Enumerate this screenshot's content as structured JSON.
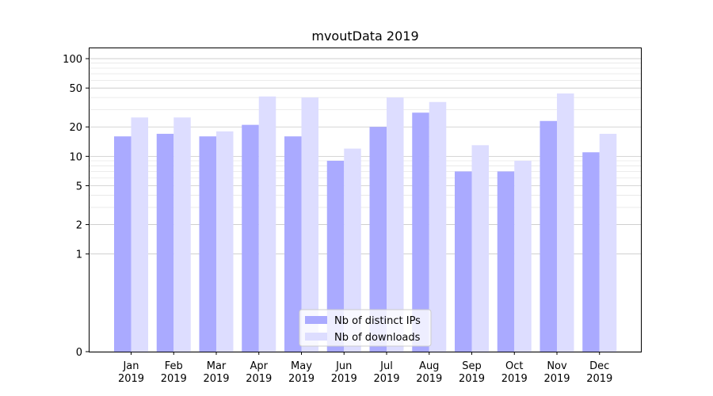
{
  "chart_data": {
    "type": "bar",
    "title": "mvoutData 2019",
    "xlabel": "",
    "ylabel": "",
    "yscale": "symlog",
    "ylim": [
      0,
      130
    ],
    "major_yticks": [
      0,
      1,
      2,
      5,
      10,
      20,
      50,
      100
    ],
    "minor_yticks": [
      3,
      4,
      6,
      7,
      8,
      9,
      30,
      40,
      60,
      70,
      80,
      90
    ],
    "grid": true,
    "legend_position": "bottom-center",
    "categories": [
      {
        "month": "Jan",
        "year": "2019"
      },
      {
        "month": "Feb",
        "year": "2019"
      },
      {
        "month": "Mar",
        "year": "2019"
      },
      {
        "month": "Apr",
        "year": "2019"
      },
      {
        "month": "May",
        "year": "2019"
      },
      {
        "month": "Jun",
        "year": "2019"
      },
      {
        "month": "Jul",
        "year": "2019"
      },
      {
        "month": "Aug",
        "year": "2019"
      },
      {
        "month": "Sep",
        "year": "2019"
      },
      {
        "month": "Oct",
        "year": "2019"
      },
      {
        "month": "Nov",
        "year": "2019"
      },
      {
        "month": "Dec",
        "year": "2019"
      }
    ],
    "series": [
      {
        "name": "Nb of distinct IPs",
        "color": "#aaaaff",
        "values": [
          16,
          17,
          16,
          21,
          16,
          9,
          20,
          28,
          7,
          7,
          23,
          11
        ]
      },
      {
        "name": "Nb of downloads",
        "color": "#ddddff",
        "values": [
          25,
          25,
          18,
          41,
          40,
          12,
          40,
          36,
          13,
          9,
          44,
          17
        ]
      }
    ]
  }
}
